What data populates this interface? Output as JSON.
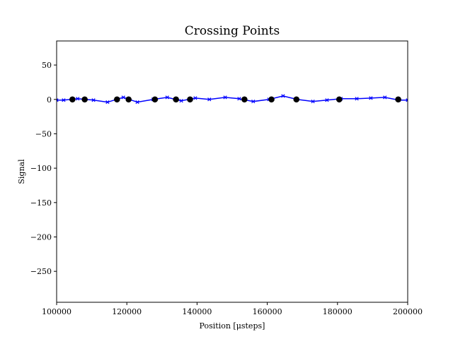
{
  "chart_data": {
    "type": "line",
    "title": "Crossing Points",
    "xlabel": "Position [μsteps]",
    "ylabel": "Signal",
    "xlim": [
      100000,
      200000
    ],
    "ylim": [
      -295,
      85
    ],
    "xticks": [
      100000,
      120000,
      140000,
      160000,
      180000,
      200000
    ],
    "xtick_labels": [
      "100000",
      "120000",
      "140000",
      "160000",
      "180000",
      "200000"
    ],
    "yticks": [
      50,
      0,
      -50,
      -100,
      -150,
      -200,
      -250
    ],
    "ytick_labels": [
      "50",
      "0",
      "−50",
      "−100",
      "−150",
      "−200",
      "−250"
    ],
    "grid": false,
    "series": [
      {
        "marker": "x",
        "color": "#0000ff",
        "x": [
          100000,
          102000,
          106000,
          110500,
          114500,
          119000,
          123000,
          127500,
          131500,
          135500,
          139500,
          143500,
          148000,
          152000,
          156000,
          160500,
          164500,
          168500,
          173000,
          177000,
          181000,
          185500,
          189500,
          193500,
          197500,
          200000
        ],
        "y": [
          -1,
          -1,
          1,
          -1,
          -4,
          3,
          -4,
          0,
          3,
          -2,
          2,
          0,
          3,
          1,
          -3,
          0,
          5,
          0,
          -3,
          -1,
          1,
          1,
          2,
          3,
          -1,
          -1
        ]
      },
      {
        "marker": "o",
        "color": "#000000",
        "x": [
          104500,
          108000,
          117200,
          120500,
          128000,
          134000,
          138000,
          153500,
          161200,
          168300,
          180500,
          197300
        ],
        "y": [
          0,
          0,
          0,
          0,
          0,
          0,
          0,
          0,
          0,
          0,
          0,
          0
        ]
      }
    ]
  }
}
